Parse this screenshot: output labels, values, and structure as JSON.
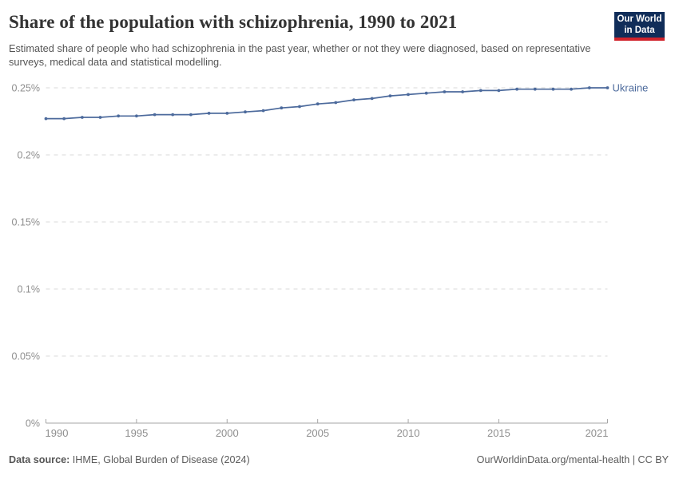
{
  "header": {
    "title": "Share of the population with schizophrenia, 1990 to 2021",
    "subtitle": "Estimated share of people who had schizophrenia in the past year, whether or not they were diagnosed, based on representative surveys, medical data and statistical modelling.",
    "logo": {
      "line1": "Our World",
      "line2": "in Data",
      "bg_color": "#102D59",
      "stripe_color": "#D0232B"
    }
  },
  "chart_data": {
    "type": "line",
    "title": "Share of the population with schizophrenia, 1990 to 2021",
    "xlabel": "",
    "ylabel": "",
    "unit": "%",
    "xlim": [
      1990,
      2021
    ],
    "ylim": [
      0,
      0.25
    ],
    "grid": "horizontal-dashed",
    "legend_position": "end-of-line-label",
    "x_ticks": [
      1990,
      1995,
      2000,
      2005,
      2010,
      2015,
      2021
    ],
    "y_ticks": [
      {
        "value": 0,
        "label": "0%"
      },
      {
        "value": 0.05,
        "label": "0.05%"
      },
      {
        "value": 0.1,
        "label": "0.1%"
      },
      {
        "value": 0.15,
        "label": "0.15%"
      },
      {
        "value": 0.2,
        "label": "0.2%"
      },
      {
        "value": 0.25,
        "label": "0.25%"
      }
    ],
    "series": [
      {
        "name": "Ukraine",
        "color": "#4C6A9C",
        "x": [
          1990,
          1991,
          1992,
          1993,
          1994,
          1995,
          1996,
          1997,
          1998,
          1999,
          2000,
          2001,
          2002,
          2003,
          2004,
          2005,
          2006,
          2007,
          2008,
          2009,
          2010,
          2011,
          2012,
          2013,
          2014,
          2015,
          2016,
          2017,
          2018,
          2019,
          2020,
          2021
        ],
        "values": [
          0.227,
          0.227,
          0.228,
          0.228,
          0.229,
          0.229,
          0.23,
          0.23,
          0.23,
          0.231,
          0.231,
          0.232,
          0.233,
          0.235,
          0.236,
          0.238,
          0.239,
          0.241,
          0.242,
          0.244,
          0.245,
          0.246,
          0.247,
          0.247,
          0.248,
          0.248,
          0.249,
          0.249,
          0.249,
          0.249,
          0.25,
          0.25
        ]
      }
    ]
  },
  "footer": {
    "source_label": "Data source:",
    "source_value": " IHME, Global Burden of Disease (2024)",
    "credit": "OurWorldinData.org/mental-health | CC BY"
  }
}
